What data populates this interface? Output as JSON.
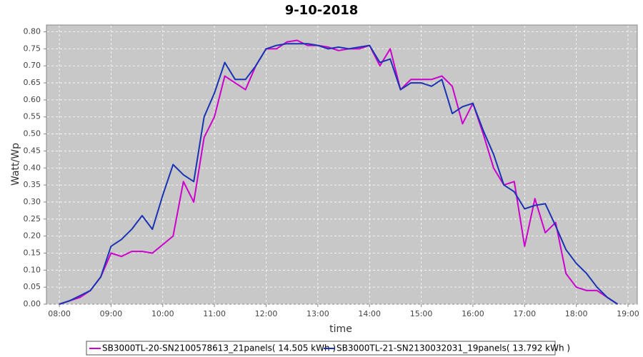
{
  "chart_data": {
    "type": "line",
    "title": "9-10-2018",
    "x_label": "time",
    "y_label": "Watt/Wp",
    "x": [
      8.0,
      8.2,
      8.4,
      8.6,
      8.8,
      9.0,
      9.2,
      9.4,
      9.6,
      9.8,
      10.0,
      10.2,
      10.4,
      10.6,
      10.8,
      11.0,
      11.2,
      11.4,
      11.6,
      11.8,
      12.0,
      12.2,
      12.4,
      12.6,
      12.8,
      13.0,
      13.2,
      13.4,
      13.6,
      13.8,
      14.0,
      14.2,
      14.4,
      14.6,
      14.8,
      15.0,
      15.2,
      15.4,
      15.6,
      15.8,
      16.0,
      16.2,
      16.4,
      16.6,
      16.8,
      17.0,
      17.2,
      17.4,
      17.6,
      17.8,
      18.0,
      18.2,
      18.4,
      18.6,
      18.8
    ],
    "series": [
      {
        "name": "SB3000TL-20-SN2100578613_21panels( 14.505 kWh )",
        "color": "#cc00cc",
        "values": [
          0.0,
          0.01,
          0.02,
          0.04,
          0.08,
          0.15,
          0.14,
          0.155,
          0.155,
          0.15,
          0.175,
          0.2,
          0.36,
          0.3,
          0.49,
          0.55,
          0.67,
          0.65,
          0.63,
          0.7,
          0.75,
          0.75,
          0.77,
          0.775,
          0.76,
          0.76,
          0.755,
          0.745,
          0.75,
          0.75,
          0.76,
          0.7,
          0.75,
          0.63,
          0.66,
          0.66,
          0.66,
          0.67,
          0.64,
          0.53,
          0.59,
          0.5,
          0.4,
          0.35,
          0.36,
          0.17,
          0.31,
          0.21,
          0.24,
          0.09,
          0.05,
          0.04,
          0.04,
          0.02,
          0.0
        ]
      },
      {
        "name": "SB3000TL-21-SN2130032031_19panels( 13.792 kWh )",
        "color": "#1a33b3",
        "values": [
          0.0,
          0.01,
          0.025,
          0.04,
          0.08,
          0.17,
          0.19,
          0.22,
          0.26,
          0.22,
          0.32,
          0.41,
          0.38,
          0.36,
          0.55,
          0.62,
          0.71,
          0.66,
          0.66,
          0.7,
          0.75,
          0.76,
          0.765,
          0.765,
          0.765,
          0.76,
          0.75,
          0.755,
          0.75,
          0.755,
          0.76,
          0.71,
          0.72,
          0.63,
          0.65,
          0.65,
          0.64,
          0.66,
          0.56,
          0.58,
          0.59,
          0.51,
          0.44,
          0.35,
          0.33,
          0.28,
          0.29,
          0.295,
          0.23,
          0.16,
          0.12,
          0.09,
          0.05,
          0.02,
          0.0
        ]
      }
    ],
    "xlim": [
      7.75,
      19.18
    ],
    "xticks": [
      {
        "value": 8,
        "label": "08:00"
      },
      {
        "value": 9,
        "label": "09:00"
      },
      {
        "value": 10,
        "label": "10:00"
      },
      {
        "value": 11,
        "label": "11:00"
      },
      {
        "value": 12,
        "label": "12:00"
      },
      {
        "value": 13,
        "label": "13:00"
      },
      {
        "value": 14,
        "label": "14:00"
      },
      {
        "value": 15,
        "label": "15:00"
      },
      {
        "value": 16,
        "label": "16:00"
      },
      {
        "value": 17,
        "label": "17:00"
      },
      {
        "value": 18,
        "label": "18:00"
      },
      {
        "value": 19,
        "label": "19:00"
      }
    ],
    "ylim": [
      0,
      0.82
    ],
    "yticks": [
      {
        "value": 0,
        "label": "0.00"
      },
      {
        "value": 0.05,
        "label": "0.05"
      },
      {
        "value": 0.1,
        "label": "0.10"
      },
      {
        "value": 0.15,
        "label": "0.15"
      },
      {
        "value": 0.2,
        "label": "0.20"
      },
      {
        "value": 0.25,
        "label": "0.25"
      },
      {
        "value": 0.3,
        "label": "0.30"
      },
      {
        "value": 0.35,
        "label": "0.35"
      },
      {
        "value": 0.4,
        "label": "0.40"
      },
      {
        "value": 0.45,
        "label": "0.45"
      },
      {
        "value": 0.5,
        "label": "0.50"
      },
      {
        "value": 0.55,
        "label": "0.55"
      },
      {
        "value": 0.6,
        "label": "0.60"
      },
      {
        "value": 0.65,
        "label": "0.65"
      },
      {
        "value": 0.7,
        "label": "0.70"
      },
      {
        "value": 0.75,
        "label": "0.75"
      },
      {
        "value": 0.8,
        "label": "0.80"
      }
    ],
    "grid": true,
    "legend": "bottom"
  }
}
